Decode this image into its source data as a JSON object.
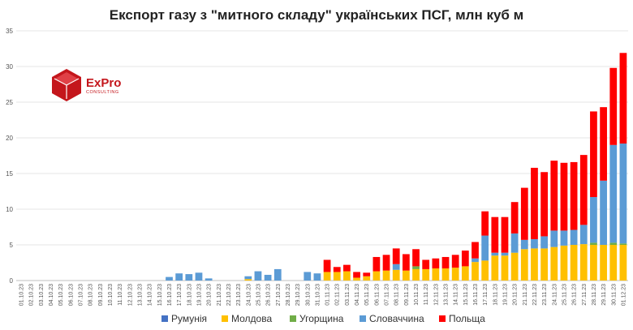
{
  "logo": {
    "name": "ExPro",
    "sub": "CONSULTING"
  },
  "chart_data": {
    "type": "bar",
    "stacked": true,
    "title": "Експорт газу з \"митного складу\" українських ПСГ, млн куб м",
    "xlabel": "",
    "ylabel": "",
    "ylim": [
      0,
      35
    ],
    "yticks": [
      0,
      5,
      10,
      15,
      20,
      25,
      30,
      35
    ],
    "grid": true,
    "legend_position": "bottom",
    "categories": [
      "01.10.23",
      "02.10.23",
      "03.10.23",
      "04.10.23",
      "05.10.23",
      "06.10.23",
      "07.10.23",
      "08.10.23",
      "09.10.23",
      "10.10.23",
      "11.10.23",
      "12.10.23",
      "13.10.23",
      "14.10.23",
      "15.10.23",
      "16.10.23",
      "17.10.23",
      "18.10.23",
      "19.10.23",
      "20.10.23",
      "21.10.23",
      "22.10.23",
      "23.10.23",
      "24.10.23",
      "25.10.23",
      "26.10.23",
      "27.10.23",
      "28.10.23",
      "29.10.23",
      "30.10.23",
      "31.10.23",
      "01.11.23",
      "02.11.23",
      "03.11.23",
      "04.11.23",
      "05.11.23",
      "06.11.23",
      "07.11.23",
      "08.11.23",
      "09.11.23",
      "10.11.23",
      "11.11.23",
      "12.11.23",
      "13.11.23",
      "14.11.23",
      "15.11.23",
      "16.11.23",
      "17.11.23",
      "18.11.23",
      "19.11.23",
      "20.11.23",
      "21.11.23",
      "22.11.23",
      "23.11.23",
      "24.11.23",
      "25.11.23",
      "26.11.23",
      "27.11.23",
      "28.11.23",
      "29.11.23",
      "30.11.23",
      "01.12.23"
    ],
    "series": [
      {
        "name": "Румунія",
        "color": "#4472c4",
        "values": [
          0,
          0,
          0,
          0,
          0,
          0,
          0,
          0,
          0,
          0,
          0,
          0,
          0,
          0,
          0,
          0,
          0,
          0,
          0,
          0,
          0,
          0,
          0,
          0,
          0,
          0,
          0,
          0,
          0,
          0,
          0,
          0,
          0,
          0,
          0,
          0,
          0,
          0,
          0,
          0,
          0,
          0,
          0,
          0,
          0,
          0,
          0,
          0,
          0,
          0,
          0,
          0,
          0,
          0,
          0,
          0,
          0,
          0,
          0,
          0,
          0,
          0
        ]
      },
      {
        "name": "Молдова",
        "color": "#ffc000",
        "values": [
          0,
          0,
          0,
          0,
          0,
          0,
          0,
          0,
          0,
          0,
          0,
          0,
          0,
          0,
          0,
          0,
          0,
          0,
          0,
          0,
          0,
          0,
          0,
          0.2,
          0,
          0,
          0,
          0,
          0,
          0,
          0,
          1.2,
          1.2,
          1.3,
          0.4,
          0.6,
          1.3,
          1.4,
          1.5,
          1.4,
          1.6,
          1.6,
          1.7,
          1.7,
          1.8,
          2.0,
          2.6,
          2.8,
          3.5,
          3.5,
          3.9,
          4.4,
          4.5,
          4.5,
          4.7,
          4.9,
          5.0,
          5.1,
          5.0,
          5.0,
          5.0,
          5.0
        ]
      },
      {
        "name": "Угорщина",
        "color": "#70ad47",
        "values": [
          0,
          0,
          0,
          0,
          0,
          0,
          0,
          0,
          0,
          0,
          0,
          0,
          0,
          0,
          0,
          0,
          0,
          0,
          0,
          0,
          0,
          0,
          0,
          0,
          0,
          0,
          0,
          0,
          0,
          0,
          0,
          0,
          0,
          0,
          0,
          0,
          0,
          0,
          0,
          0,
          0.4,
          0,
          0,
          0,
          0,
          0,
          0,
          0,
          0,
          0,
          0,
          0,
          0,
          0,
          0,
          0,
          0,
          0,
          0.3,
          0,
          0.3,
          0.2
        ]
      },
      {
        "name": "Словаччина",
        "color": "#5b9bd5",
        "values": [
          0,
          0,
          0,
          0,
          0,
          0,
          0,
          0,
          0,
          0,
          0,
          0,
          0,
          0,
          0,
          0.5,
          1.0,
          0.9,
          1.1,
          0.3,
          0,
          0,
          0,
          0.4,
          1.3,
          0.8,
          1.6,
          0,
          0,
          1.2,
          1.0,
          0,
          0,
          0,
          0,
          0,
          0,
          0,
          0.8,
          0,
          0,
          0,
          0,
          0,
          0,
          0,
          0.5,
          3.5,
          0.4,
          0.4,
          2.7,
          1.3,
          1.3,
          1.7,
          2.3,
          2.1,
          2.1,
          2.7,
          6.4,
          9.0,
          13.7,
          14.0
        ]
      },
      {
        "name": "Польща",
        "color": "#ff0000",
        "values": [
          0,
          0,
          0,
          0,
          0,
          0,
          0,
          0,
          0,
          0,
          0,
          0,
          0,
          0,
          0,
          0,
          0,
          0,
          0,
          0,
          0,
          0,
          0,
          0,
          0,
          0,
          0,
          0,
          0,
          0,
          0,
          1.7,
          0.7,
          0.9,
          0.8,
          0.5,
          2.0,
          2.2,
          2.2,
          2.3,
          2.4,
          1.3,
          1.4,
          1.6,
          1.8,
          2.2,
          2.3,
          3.4,
          5.0,
          5.0,
          4.4,
          7.3,
          10.0,
          9.0,
          9.8,
          9.5,
          9.5,
          9.8,
          12.0,
          10.3,
          10.8,
          12.7
        ]
      }
    ]
  }
}
